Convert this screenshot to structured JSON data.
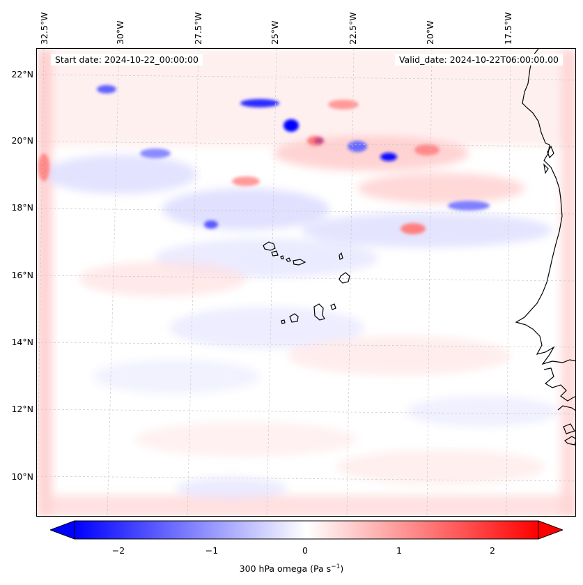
{
  "map": {
    "start_date": "Start date: 2024-10-22_00:00:00",
    "valid_date": "Valid_date: 2024-10-22T06:00:00.00",
    "lon_ticks": [
      "32.5°W",
      "30°W",
      "27.5°W",
      "25°W",
      "22.5°W",
      "20°W",
      "17.5°W"
    ],
    "lat_ticks": [
      "22°N",
      "20°N",
      "18°N",
      "16°N",
      "14°N",
      "12°N",
      "10°N"
    ],
    "field": "300 hPa omega",
    "colormap": "bwr",
    "colors": {
      "negative": "#0000ff",
      "zero": "#ffffff",
      "positive": "#ff0000",
      "coastline": "#000000",
      "gridline": "#c8c8c8"
    }
  },
  "colorbar": {
    "label_prefix": "300 hPa omega (Pa s",
    "label_sup": "−1",
    "label_suffix": ")",
    "ticks": [
      "−2",
      "−1",
      "0",
      "1",
      "2"
    ],
    "range": [
      -2.6,
      2.6
    ],
    "extend": "both"
  }
}
